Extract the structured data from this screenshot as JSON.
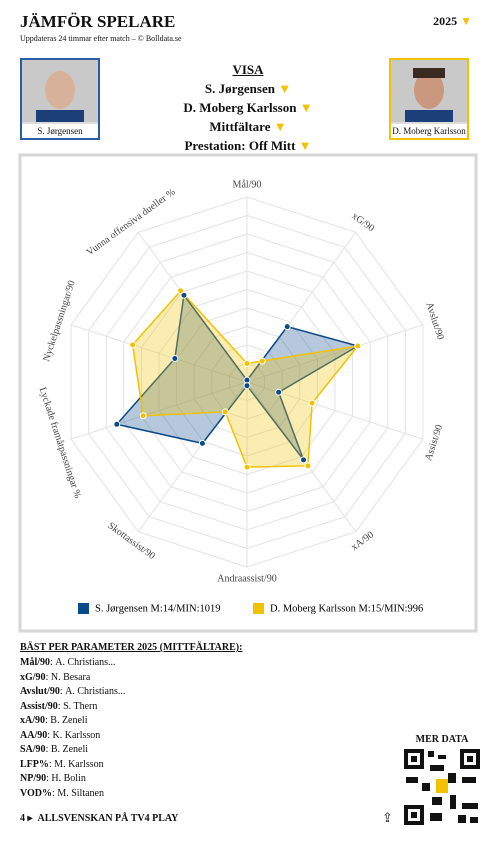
{
  "header": {
    "title": "JÄMFÖR SPELARE",
    "subtitle": "Uppdateras 24 timmar efter match – © Bolldata.se",
    "season": "2025"
  },
  "players": [
    {
      "name": "S. Jørgensen"
    },
    {
      "name": "D. Moberg Karlsson"
    }
  ],
  "selectors": {
    "heading": "VISA",
    "lines": [
      "S. Jørgensen",
      "D. Moberg Karlsson",
      "Mittfältare",
      "Prestation: Off Mitt"
    ]
  },
  "chart_data": {
    "type": "radar",
    "categories": [
      "Mål/90",
      "xG/90",
      "Avslut/90",
      "Assist/90",
      "xA/90",
      "Andraassist/90",
      "Skottassist/90",
      "Lyckade framåtpassningar %",
      "Nyckelpassningar/90",
      "Vunna offensiva dueller %"
    ],
    "series": [
      {
        "name": "S. Jørgensen M:14/MIN:1019",
        "color": "#0b4a8a",
        "values": [
          1,
          37,
          63,
          18,
          52,
          2,
          41,
          74,
          41,
          58
        ]
      },
      {
        "name": "D. Moberg Karlsson M:15/MIN:996",
        "color": "#f2c200",
        "values": [
          10,
          14,
          63,
          37,
          56,
          46,
          20,
          59,
          65,
          61
        ]
      }
    ],
    "rlim": [
      0,
      100
    ],
    "grid": true
  },
  "best": {
    "title": "BÄST PER PARAMETER 2025 (MITTFÄLTARE):",
    "rows": [
      [
        "Mål/90",
        "A. Christians..."
      ],
      [
        "xG/90",
        "N. Besara"
      ],
      [
        "Avslut/90",
        "A. Christians..."
      ],
      [
        "Assist/90",
        "S. Thern"
      ],
      [
        "xA/90",
        "B. Zeneli"
      ],
      [
        "AA/90",
        "K. Karlsson"
      ],
      [
        "SA/90",
        "B. Zeneli"
      ],
      [
        "LFP%",
        "M. Karlsson"
      ],
      [
        "NP/90",
        "H. Bolin"
      ],
      [
        "VOD%",
        "M. Siltanen"
      ]
    ]
  },
  "qr": {
    "title": "MER DATA"
  },
  "footer": {
    "text": "ALLSVENSKAN PÅ TV4 PLAY"
  }
}
